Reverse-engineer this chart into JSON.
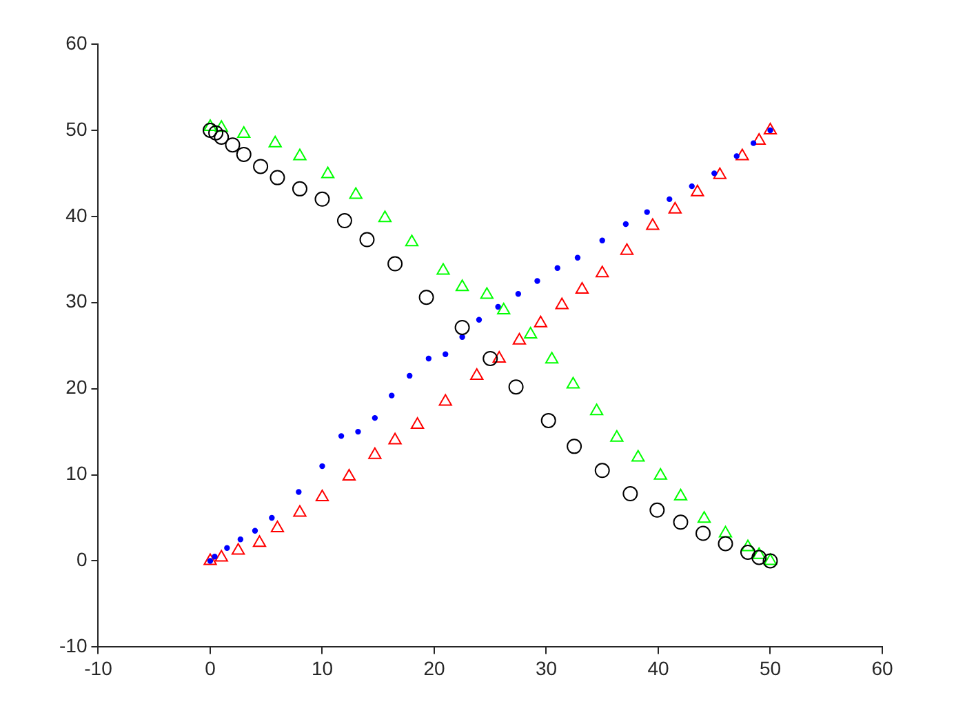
{
  "chart_data": {
    "type": "scatter",
    "xlim": [
      -10,
      60
    ],
    "ylim": [
      -10,
      60
    ],
    "xticks": [
      -10,
      0,
      10,
      20,
      30,
      40,
      50,
      60
    ],
    "yticks": [
      -10,
      0,
      10,
      20,
      30,
      40,
      50,
      60
    ],
    "grid": false,
    "legend": false,
    "series": [
      {
        "color": "#000000",
        "marker": "circle",
        "x": [
          0,
          0.5,
          1,
          2,
          3,
          4.5,
          6,
          8,
          10,
          12,
          14,
          16.5,
          19.3,
          22.5,
          25,
          27.3,
          30.2,
          32.5,
          35,
          37.5,
          39.9,
          42,
          44,
          46,
          48,
          49,
          50
        ],
        "values": [
          50,
          49.7,
          49.2,
          48.3,
          47.2,
          45.8,
          44.5,
          43.2,
          42,
          39.5,
          37.3,
          34.5,
          30.6,
          27.1,
          23.5,
          20.2,
          16.3,
          13.3,
          10.5,
          7.8,
          5.9,
          4.5,
          3.2,
          2,
          1,
          0.4,
          0
        ]
      },
      {
        "color": "#00ff00",
        "marker": "triangle",
        "x": [
          0,
          1,
          3,
          5.8,
          8,
          10.5,
          13,
          15.6,
          18,
          20.8,
          22.5,
          24.7,
          26.2,
          28.6,
          30.5,
          32.4,
          34.5,
          36.3,
          38.2,
          40.2,
          42,
          44.1,
          46,
          48,
          49,
          50
        ],
        "values": [
          50.4,
          50.3,
          49.6,
          48.5,
          47,
          44.9,
          42.5,
          39.8,
          37,
          33.7,
          31.8,
          30.9,
          29.1,
          26.3,
          23.4,
          20.5,
          17.4,
          14.3,
          12,
          9.9,
          7.5,
          4.9,
          3.2,
          1.6,
          0.7,
          0
        ]
      },
      {
        "color": "#0000ff",
        "marker": "circle",
        "x": [
          0,
          0.4,
          1.5,
          2.7,
          4,
          5.5,
          7.9,
          10,
          11.7,
          13.2,
          14.7,
          16.2,
          17.8,
          19.5,
          21,
          22.5,
          24,
          25.7,
          27.5,
          29.2,
          31,
          32.8,
          35,
          37.1,
          39,
          41,
          43,
          45,
          47,
          48.5,
          50
        ],
        "values": [
          0,
          0.5,
          1.5,
          2.5,
          3.5,
          5,
          8,
          11,
          14.5,
          15,
          16.6,
          19.2,
          21.5,
          23.5,
          24,
          26,
          28,
          29.5,
          31,
          32.5,
          34,
          35.2,
          37.2,
          39.1,
          40.5,
          42,
          43.5,
          45,
          47,
          48.5,
          50
        ]
      },
      {
        "color": "#ff0000",
        "marker": "triangle",
        "x": [
          0,
          1,
          2.5,
          4.4,
          6,
          8,
          10,
          12.4,
          14.7,
          16.5,
          18.5,
          21,
          23.8,
          25.8,
          27.6,
          29.5,
          31.4,
          33.2,
          35,
          37.2,
          39.5,
          41.5,
          43.5,
          45.5,
          47.5,
          49,
          50
        ],
        "values": [
          0,
          0.4,
          1.2,
          2.1,
          3.8,
          5.6,
          7.4,
          9.8,
          12.3,
          14,
          15.8,
          18.5,
          21.5,
          23.5,
          25.6,
          27.6,
          29.7,
          31.5,
          33.4,
          36,
          38.9,
          40.8,
          42.8,
          44.8,
          47,
          48.8,
          50
        ]
      }
    ]
  }
}
